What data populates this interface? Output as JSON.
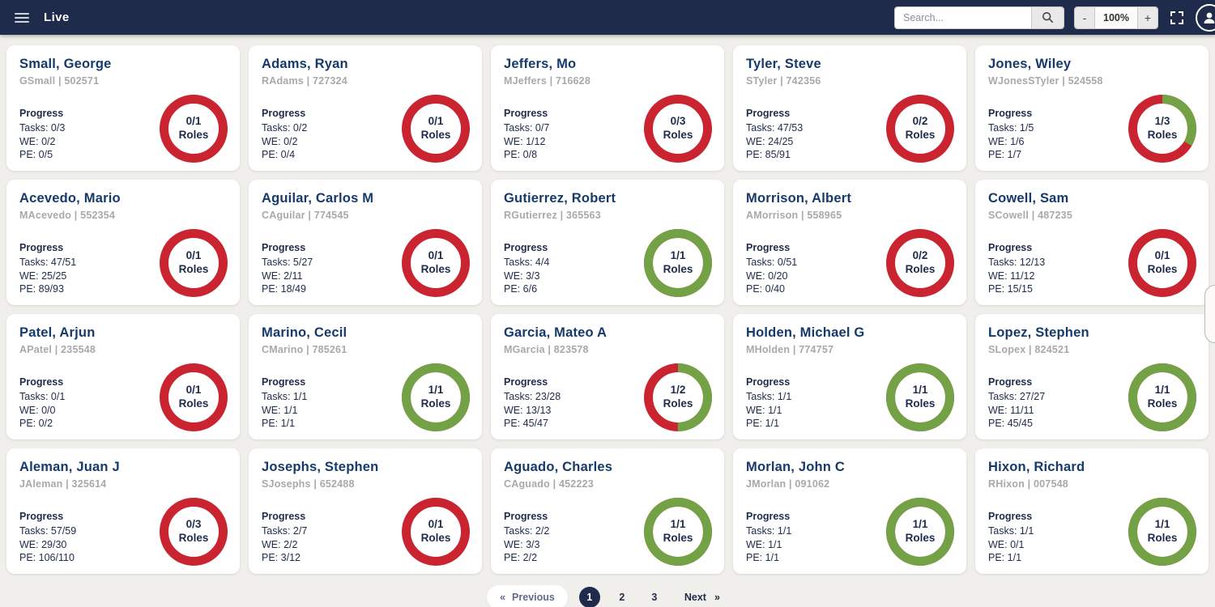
{
  "header": {
    "title": "Live",
    "search_placeholder": "Search...",
    "zoom_out": "-",
    "zoom_level": "100%",
    "zoom_in": "+"
  },
  "labels": {
    "progress": "Progress",
    "tasks": "Tasks:",
    "we": "WE:",
    "pe": "PE:",
    "roles": "Roles"
  },
  "colors": {
    "header_bg": "#1f2b4a",
    "page_bg": "#f1efeb",
    "name_text": "#153a6b",
    "ring_red": "#c92430",
    "ring_green": "#73a246"
  },
  "cards": [
    {
      "name": "Small, George",
      "handle": "GSmall | 502571",
      "tasks": "0/3",
      "we": "0/2",
      "pe": "0/5",
      "roles": "0/1",
      "roles_done": 0,
      "roles_total": 1
    },
    {
      "name": "Adams, Ryan",
      "handle": "RAdams | 727324",
      "tasks": "0/2",
      "we": "0/2",
      "pe": "0/4",
      "roles": "0/1",
      "roles_done": 0,
      "roles_total": 1
    },
    {
      "name": "Jeffers, Mo",
      "handle": "MJeffers | 716628",
      "tasks": "0/7",
      "we": "1/12",
      "pe": "0/8",
      "roles": "0/3",
      "roles_done": 0,
      "roles_total": 3
    },
    {
      "name": "Tyler, Steve",
      "handle": "STyler | 742356",
      "tasks": "47/53",
      "we": "24/25",
      "pe": "85/91",
      "roles": "0/2",
      "roles_done": 0,
      "roles_total": 2
    },
    {
      "name": "Jones, Wiley",
      "handle": "WJonesSTyler | 524558",
      "tasks": "1/5",
      "we": "1/6",
      "pe": "1/7",
      "roles": "1/3",
      "roles_done": 1,
      "roles_total": 3
    },
    {
      "name": "Acevedo, Mario",
      "handle": "MAcevedo | 552354",
      "tasks": "47/51",
      "we": "25/25",
      "pe": "89/93",
      "roles": "0/1",
      "roles_done": 0,
      "roles_total": 1
    },
    {
      "name": "Aguilar, Carlos M",
      "handle": "CAguilar | 774545",
      "tasks": "5/27",
      "we": "2/11",
      "pe": "18/49",
      "roles": "0/1",
      "roles_done": 0,
      "roles_total": 1
    },
    {
      "name": "Gutierrez, Robert",
      "handle": "RGutierrez | 365563",
      "tasks": "4/4",
      "we": "3/3",
      "pe": "6/6",
      "roles": "1/1",
      "roles_done": 1,
      "roles_total": 1
    },
    {
      "name": "Morrison, Albert",
      "handle": "AMorrison | 558965",
      "tasks": "0/51",
      "we": "0/20",
      "pe": "0/40",
      "roles": "0/2",
      "roles_done": 0,
      "roles_total": 2
    },
    {
      "name": "Cowell, Sam",
      "handle": "SCowell | 487235",
      "tasks": "12/13",
      "we": "11/12",
      "pe": "15/15",
      "roles": "0/1",
      "roles_done": 0,
      "roles_total": 1
    },
    {
      "name": "Patel, Arjun",
      "handle": "APatel | 235548",
      "tasks": "0/1",
      "we": "0/0",
      "pe": "0/2",
      "roles": "0/1",
      "roles_done": 0,
      "roles_total": 1
    },
    {
      "name": "Marino, Cecil",
      "handle": "CMarino | 785261",
      "tasks": "1/1",
      "we": "1/1",
      "pe": "1/1",
      "roles": "1/1",
      "roles_done": 1,
      "roles_total": 1
    },
    {
      "name": "Garcia, Mateo A",
      "handle": "MGarcia | 823578",
      "tasks": "23/28",
      "we": "13/13",
      "pe": "45/47",
      "roles": "1/2",
      "roles_done": 1,
      "roles_total": 2
    },
    {
      "name": "Holden, Michael G",
      "handle": "MHolden | 774757",
      "tasks": "1/1",
      "we": "1/1",
      "pe": "1/1",
      "roles": "1/1",
      "roles_done": 1,
      "roles_total": 1
    },
    {
      "name": "Lopez, Stephen",
      "handle": "SLopex | 824521",
      "tasks": "27/27",
      "we": "11/11",
      "pe": "45/45",
      "roles": "1/1",
      "roles_done": 1,
      "roles_total": 1
    },
    {
      "name": "Aleman, Juan J",
      "handle": "JAleman | 325614",
      "tasks": "57/59",
      "we": "29/30",
      "pe": "106/110",
      "roles": "0/3",
      "roles_done": 0,
      "roles_total": 3
    },
    {
      "name": "Josephs, Stephen",
      "handle": "SJosephs | 652488",
      "tasks": "2/7",
      "we": "2/2",
      "pe": "3/12",
      "roles": "0/1",
      "roles_done": 0,
      "roles_total": 1
    },
    {
      "name": "Aguado, Charles",
      "handle": "CAguado | 452223",
      "tasks": "2/2",
      "we": "3/3",
      "pe": "2/2",
      "roles": "1/1",
      "roles_done": 1,
      "roles_total": 1
    },
    {
      "name": "Morlan, John C",
      "handle": "JMorlan | 091062",
      "tasks": "1/1",
      "we": "1/1",
      "pe": "1/1",
      "roles": "1/1",
      "roles_done": 1,
      "roles_total": 1
    },
    {
      "name": "Hixon, Richard",
      "handle": "RHixon | 007548",
      "tasks": "1/1",
      "we": "0/1",
      "pe": "1/1",
      "roles": "1/1",
      "roles_done": 1,
      "roles_total": 1
    }
  ],
  "pagination": {
    "previous_icon": "«",
    "previous_label": "Previous",
    "pages": [
      "1",
      "2",
      "3"
    ],
    "active_page": "1",
    "next_label": "Next",
    "next_icon": "»"
  }
}
